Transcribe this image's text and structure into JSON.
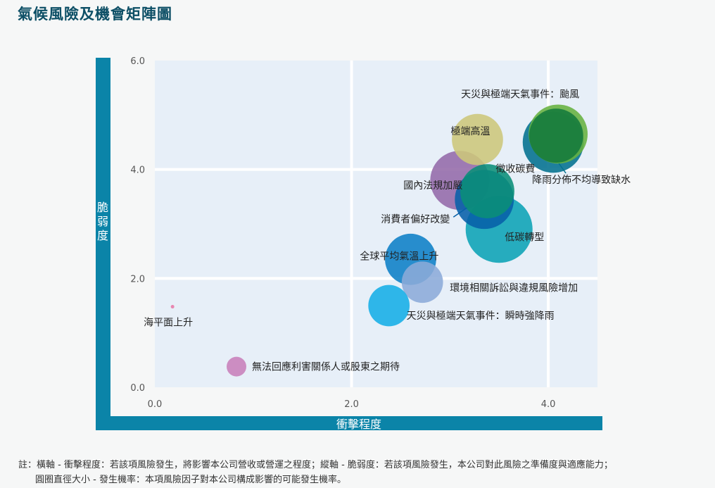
{
  "title": "氣候風險及機會矩陣圖",
  "chart_data": {
    "type": "scatter",
    "xlabel": "衝擊程度",
    "ylabel": "脆弱度",
    "xlim": [
      0,
      4.5
    ],
    "ylim": [
      0,
      6
    ],
    "x_ticks": [
      "0.0",
      "2.0",
      "4.0"
    ],
    "y_ticks": [
      "0.0",
      "2.0",
      "4.0",
      "6.0"
    ],
    "grid": true,
    "points": [
      {
        "label": "天災與極端天氣事件：颱風",
        "x": 4.1,
        "y": 4.65,
        "size": 0.6,
        "color": "#67b23f"
      },
      {
        "label": "降雨分佈不均導致缺水",
        "x": 4.05,
        "y": 4.5,
        "size": 0.62,
        "color": "#02718e"
      },
      {
        "label": "",
        "x": 4.08,
        "y": 4.62,
        "size": 0.55,
        "color": "#157a3c"
      },
      {
        "label": "極端高溫",
        "x": 3.28,
        "y": 4.55,
        "size": 0.52,
        "color": "#cdc77a"
      },
      {
        "label": "國內法規加嚴",
        "x": 3.1,
        "y": 3.8,
        "size": 0.6,
        "color": "#946aa8"
      },
      {
        "label": "徵收碳費",
        "x": 3.38,
        "y": 3.6,
        "size": 0.55,
        "color": "#0a8e77"
      },
      {
        "label": "消費者偏好改變",
        "x": 3.35,
        "y": 3.45,
        "size": 0.6,
        "color": "#0760a8"
      },
      {
        "label": "低碳轉型",
        "x": 3.5,
        "y": 2.9,
        "size": 0.68,
        "color": "#0ba3b5"
      },
      {
        "label": "全球平均氣溫上升",
        "x": 2.6,
        "y": 2.35,
        "size": 0.52,
        "color": "#0c7fc6"
      },
      {
        "label": "環境相關訴訟與違規風險增加",
        "x": 2.72,
        "y": 1.93,
        "size": 0.42,
        "color": "#8cabd8"
      },
      {
        "label": "天災與極端天氣事件：瞬時強降雨",
        "x": 2.38,
        "y": 1.5,
        "size": 0.42,
        "color": "#15aee6"
      },
      {
        "label": "海平面上升",
        "x": 0.18,
        "y": 1.48,
        "size": 0.02,
        "color": "#e879a6"
      },
      {
        "label": "無法回應利害關係人或股東之期待",
        "x": 0.83,
        "y": 0.38,
        "size": 0.2,
        "color": "#c87fba"
      }
    ]
  },
  "note": {
    "line1": "註：橫軸 - 衝擊程度：若該項風險發生，將影響本公司營收或營運之程度；縱軸 - 脆弱度：若該項風險發生，本公司對此風險之準備度與適應能力；",
    "line2": "圓圈直徑大小 - 發生機率：本項風險因子對本公司構成影響的可能發生機率。"
  }
}
